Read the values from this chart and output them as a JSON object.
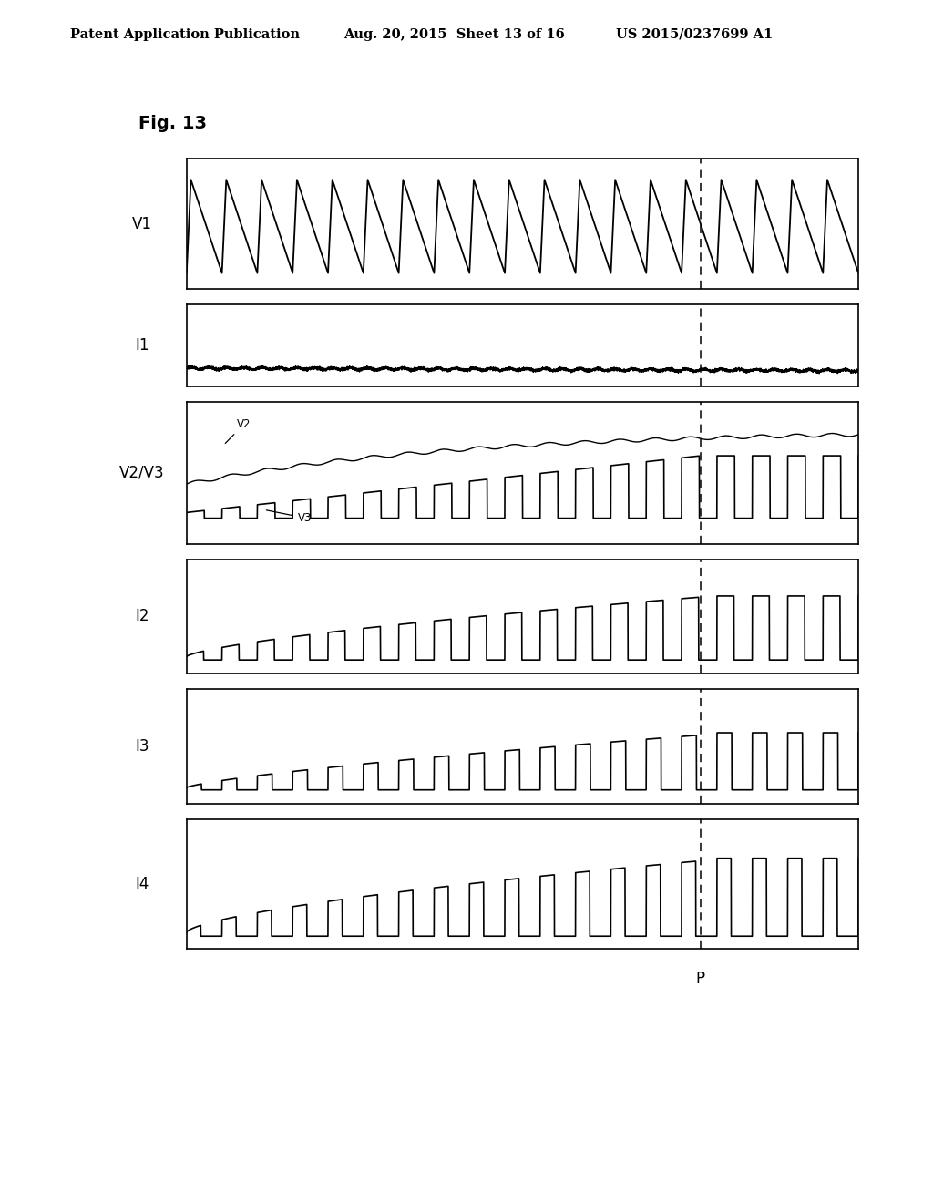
{
  "title": "Fig. 13",
  "header_left": "Patent Application Publication",
  "header_mid": "Aug. 20, 2015  Sheet 13 of 16",
  "header_right": "US 2015/0237699 A1",
  "background_color": "#ffffff",
  "panel_labels": [
    "V1",
    "I1",
    "V2/V3",
    "I2",
    "I3",
    "I4"
  ],
  "dashed_line_x": 0.765,
  "dashed_line_label": "P",
  "num_cycles": 19,
  "fig_label": "Fig. 13"
}
